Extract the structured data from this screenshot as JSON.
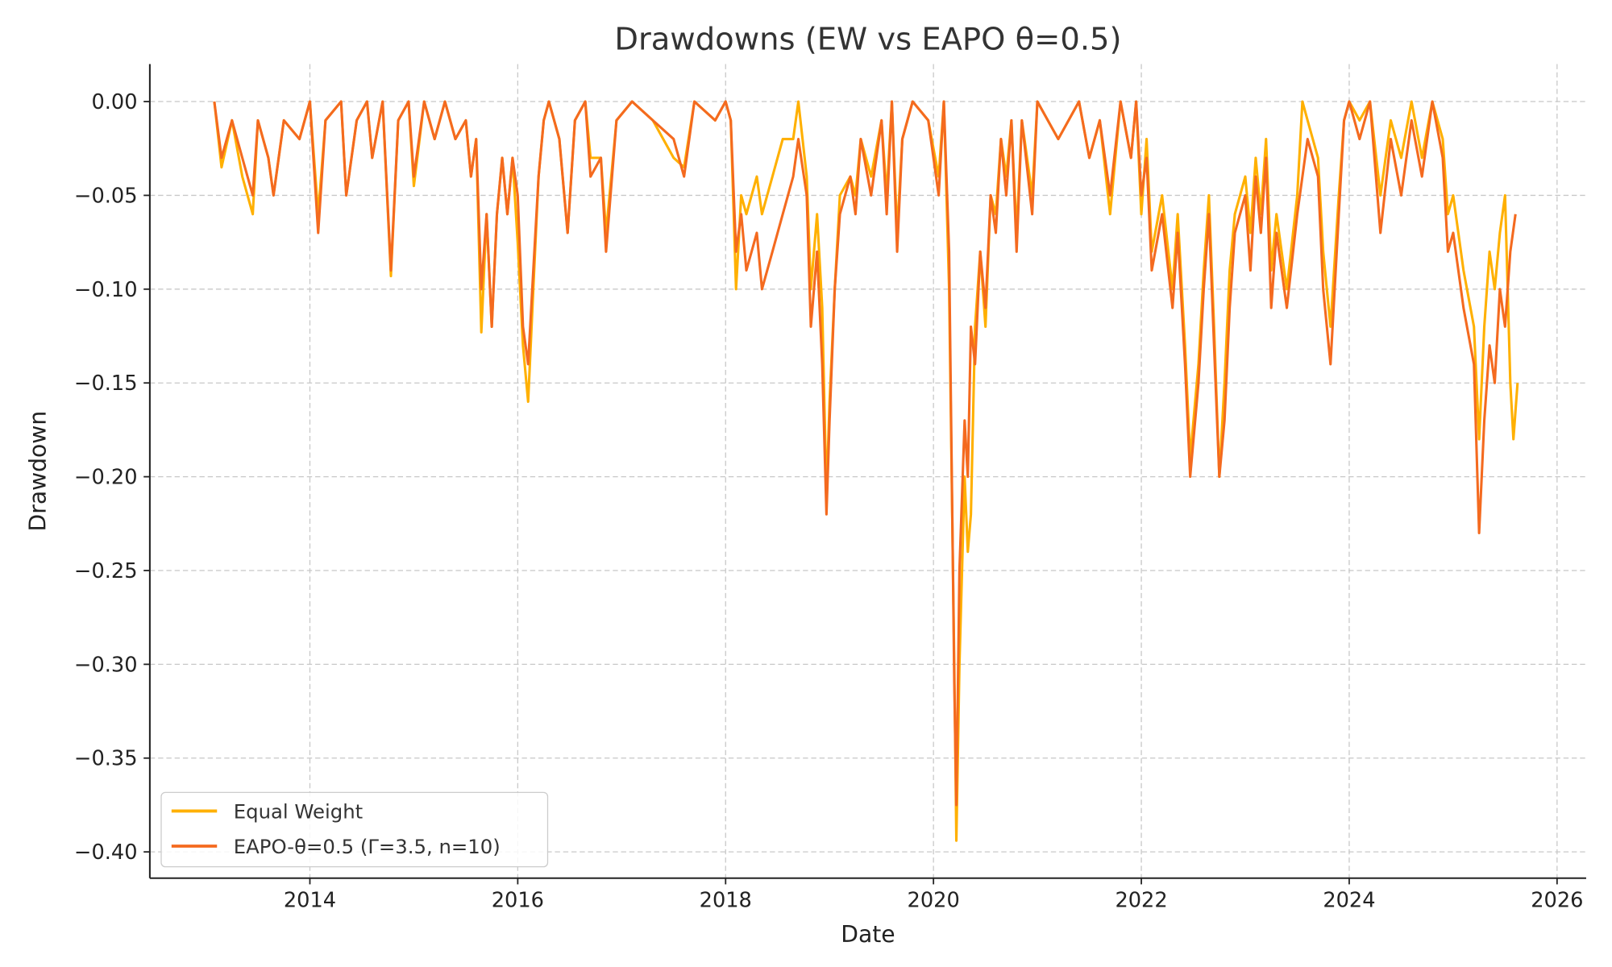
{
  "chart_data": {
    "type": "line",
    "title": "Drawdowns (EW vs EAPO θ=0.5)",
    "xlabel": "Date",
    "ylabel": "Drawdown",
    "xlim": [
      2012.46,
      2026.28
    ],
    "ylim": [
      -0.414,
      0.02
    ],
    "grid": true,
    "legend_position": "lower-left",
    "x_ticks": [
      2014,
      2016,
      2018,
      2020,
      2022,
      2024,
      2026
    ],
    "x_tick_labels": [
      "2014",
      "2016",
      "2018",
      "2020",
      "2022",
      "2024",
      "2026"
    ],
    "y_ticks": [
      0,
      -0.05,
      -0.1,
      -0.15,
      -0.2,
      -0.25,
      -0.3,
      -0.35,
      -0.4
    ],
    "y_tick_labels": [
      "0.00",
      "−0.05",
      "−0.10",
      "−0.15",
      "−0.20",
      "−0.25",
      "−0.30",
      "−0.35",
      "−0.40"
    ],
    "series": [
      {
        "name": "Equal Weight",
        "color": "#FFB000",
        "x": [
          2013.08,
          2013.15,
          2013.25,
          2013.35,
          2013.45,
          2013.5,
          2013.6,
          2013.65,
          2013.75,
          2013.9,
          2014.0,
          2014.08,
          2014.15,
          2014.3,
          2014.35,
          2014.45,
          2014.55,
          2014.6,
          2014.7,
          2014.78,
          2014.85,
          2014.95,
          2015.0,
          2015.1,
          2015.2,
          2015.3,
          2015.4,
          2015.5,
          2015.55,
          2015.6,
          2015.65,
          2015.7,
          2015.75,
          2015.8,
          2015.85,
          2015.9,
          2015.95,
          2016.0,
          2016.05,
          2016.1,
          2016.15,
          2016.2,
          2016.25,
          2016.3,
          2016.4,
          2016.48,
          2016.55,
          2016.65,
          2016.7,
          2016.8,
          2016.85,
          2016.95,
          2017.1,
          2017.3,
          2017.5,
          2017.6,
          2017.7,
          2017.9,
          2018.0,
          2018.05,
          2018.1,
          2018.15,
          2018.2,
          2018.3,
          2018.35,
          2018.45,
          2018.55,
          2018.65,
          2018.7,
          2018.78,
          2018.82,
          2018.88,
          2018.93,
          2018.97,
          2019.0,
          2019.05,
          2019.1,
          2019.2,
          2019.25,
          2019.3,
          2019.4,
          2019.5,
          2019.55,
          2019.6,
          2019.65,
          2019.7,
          2019.8,
          2019.95,
          2020.05,
          2020.1,
          2020.15,
          2020.2,
          2020.22,
          2020.25,
          2020.3,
          2020.33,
          2020.36,
          2020.4,
          2020.45,
          2020.5,
          2020.55,
          2020.6,
          2020.65,
          2020.7,
          2020.75,
          2020.8,
          2020.85,
          2020.95,
          2021.0,
          2021.2,
          2021.4,
          2021.5,
          2021.6,
          2021.7,
          2021.8,
          2021.9,
          2021.95,
          2022.0,
          2022.05,
          2022.1,
          2022.2,
          2022.3,
          2022.35,
          2022.42,
          2022.47,
          2022.55,
          2022.6,
          2022.65,
          2022.7,
          2022.75,
          2022.8,
          2022.85,
          2022.9,
          2023.0,
          2023.05,
          2023.1,
          2023.15,
          2023.2,
          2023.25,
          2023.3,
          2023.35,
          2023.4,
          2023.5,
          2023.55,
          2023.6,
          2023.7,
          2023.75,
          2023.82,
          2023.9,
          2023.95,
          2024.0,
          2024.1,
          2024.2,
          2024.3,
          2024.4,
          2024.5,
          2024.6,
          2024.7,
          2024.8,
          2024.9,
          2024.95,
          2025.0,
          2025.1,
          2025.2,
          2025.25,
          2025.3,
          2025.35,
          2025.4,
          2025.45,
          2025.5,
          2025.55,
          2025.58,
          2025.62
        ],
        "y": [
          0,
          -0.035,
          -0.01,
          -0.04,
          -0.06,
          -0.01,
          -0.03,
          -0.05,
          -0.01,
          -0.02,
          0,
          -0.06,
          -0.01,
          0,
          -0.05,
          -0.01,
          0,
          -0.03,
          0,
          -0.093,
          -0.01,
          0,
          -0.045,
          0,
          -0.02,
          0,
          -0.02,
          -0.01,
          -0.04,
          -0.02,
          -0.123,
          -0.06,
          -0.12,
          -0.06,
          -0.03,
          -0.06,
          -0.03,
          -0.075,
          -0.13,
          -0.16,
          -0.1,
          -0.04,
          -0.01,
          0,
          -0.02,
          -0.07,
          -0.01,
          0,
          -0.03,
          -0.03,
          -0.07,
          -0.01,
          0,
          -0.01,
          -0.03,
          -0.035,
          0,
          -0.01,
          0,
          -0.01,
          -0.1,
          -0.05,
          -0.06,
          -0.04,
          -0.06,
          -0.04,
          -0.02,
          -0.02,
          0,
          -0.04,
          -0.1,
          -0.06,
          -0.11,
          -0.21,
          -0.16,
          -0.1,
          -0.05,
          -0.04,
          -0.05,
          -0.02,
          -0.04,
          -0.01,
          -0.05,
          0,
          -0.07,
          -0.02,
          0,
          -0.01,
          -0.04,
          0,
          -0.1,
          -0.3,
          -0.394,
          -0.3,
          -0.2,
          -0.24,
          -0.22,
          -0.12,
          -0.08,
          -0.12,
          -0.05,
          -0.06,
          -0.02,
          -0.04,
          -0.01,
          -0.07,
          -0.01,
          -0.05,
          0,
          -0.02,
          0,
          -0.03,
          -0.01,
          -0.06,
          0,
          -0.03,
          0,
          -0.06,
          -0.02,
          -0.08,
          -0.05,
          -0.1,
          -0.06,
          -0.13,
          -0.19,
          -0.14,
          -0.09,
          -0.05,
          -0.12,
          -0.2,
          -0.15,
          -0.09,
          -0.06,
          -0.04,
          -0.07,
          -0.03,
          -0.06,
          -0.02,
          -0.09,
          -0.06,
          -0.08,
          -0.1,
          -0.05,
          0,
          -0.01,
          -0.03,
          -0.08,
          -0.12,
          -0.05,
          -0.01,
          0,
          -0.01,
          0,
          -0.05,
          -0.01,
          -0.03,
          0,
          -0.03,
          0,
          -0.02,
          -0.06,
          -0.05,
          -0.09,
          -0.12,
          -0.18,
          -0.12,
          -0.08,
          -0.1,
          -0.07,
          -0.05,
          -0.15,
          -0.18,
          -0.15
        ]
      },
      {
        "name": "EAPO-θ=0.5 (Γ=3.5, n=10)",
        "color": "#F46A1F",
        "x": [
          2013.08,
          2013.15,
          2013.25,
          2013.35,
          2013.45,
          2013.5,
          2013.6,
          2013.65,
          2013.75,
          2013.9,
          2014.0,
          2014.08,
          2014.15,
          2014.3,
          2014.35,
          2014.45,
          2014.55,
          2014.6,
          2014.7,
          2014.78,
          2014.85,
          2014.95,
          2015.0,
          2015.1,
          2015.2,
          2015.3,
          2015.4,
          2015.5,
          2015.55,
          2015.6,
          2015.65,
          2015.7,
          2015.75,
          2015.8,
          2015.85,
          2015.9,
          2015.95,
          2016.0,
          2016.05,
          2016.1,
          2016.15,
          2016.2,
          2016.25,
          2016.3,
          2016.4,
          2016.48,
          2016.55,
          2016.65,
          2016.7,
          2016.8,
          2016.85,
          2016.95,
          2017.1,
          2017.3,
          2017.5,
          2017.6,
          2017.7,
          2017.9,
          2018.0,
          2018.05,
          2018.1,
          2018.15,
          2018.2,
          2018.3,
          2018.35,
          2018.45,
          2018.55,
          2018.65,
          2018.7,
          2018.78,
          2018.82,
          2018.88,
          2018.93,
          2018.97,
          2019.0,
          2019.05,
          2019.1,
          2019.2,
          2019.25,
          2019.3,
          2019.4,
          2019.5,
          2019.55,
          2019.6,
          2019.65,
          2019.7,
          2019.8,
          2019.95,
          2020.05,
          2020.1,
          2020.15,
          2020.2,
          2020.22,
          2020.25,
          2020.3,
          2020.33,
          2020.36,
          2020.4,
          2020.45,
          2020.5,
          2020.55,
          2020.6,
          2020.65,
          2020.7,
          2020.75,
          2020.8,
          2020.85,
          2020.95,
          2021.0,
          2021.2,
          2021.4,
          2021.5,
          2021.6,
          2021.7,
          2021.8,
          2021.9,
          2021.95,
          2022.0,
          2022.05,
          2022.1,
          2022.2,
          2022.3,
          2022.35,
          2022.42,
          2022.47,
          2022.55,
          2022.6,
          2022.65,
          2022.7,
          2022.75,
          2022.8,
          2022.85,
          2022.9,
          2023.0,
          2023.05,
          2023.1,
          2023.15,
          2023.2,
          2023.25,
          2023.3,
          2023.35,
          2023.4,
          2023.5,
          2023.6,
          2023.7,
          2023.75,
          2023.82,
          2023.9,
          2023.95,
          2024.0,
          2024.1,
          2024.2,
          2024.3,
          2024.4,
          2024.5,
          2024.6,
          2024.7,
          2024.8,
          2024.9,
          2024.95,
          2025.0,
          2025.1,
          2025.2,
          2025.25,
          2025.3,
          2025.35,
          2025.4,
          2025.45,
          2025.5,
          2025.55,
          2025.6
        ],
        "y": [
          0,
          -0.03,
          -0.01,
          -0.03,
          -0.05,
          -0.01,
          -0.03,
          -0.05,
          -0.01,
          -0.02,
          0,
          -0.07,
          -0.01,
          0,
          -0.05,
          -0.01,
          0,
          -0.03,
          0,
          -0.09,
          -0.01,
          0,
          -0.04,
          0,
          -0.02,
          0,
          -0.02,
          -0.01,
          -0.04,
          -0.02,
          -0.1,
          -0.06,
          -0.12,
          -0.06,
          -0.03,
          -0.06,
          -0.03,
          -0.05,
          -0.12,
          -0.14,
          -0.09,
          -0.04,
          -0.01,
          0,
          -0.02,
          -0.07,
          -0.01,
          0,
          -0.04,
          -0.03,
          -0.08,
          -0.01,
          0,
          -0.01,
          -0.02,
          -0.04,
          0,
          -0.01,
          0,
          -0.01,
          -0.08,
          -0.06,
          -0.09,
          -0.07,
          -0.1,
          -0.08,
          -0.06,
          -0.04,
          -0.02,
          -0.05,
          -0.12,
          -0.08,
          -0.14,
          -0.22,
          -0.17,
          -0.1,
          -0.06,
          -0.04,
          -0.06,
          -0.02,
          -0.05,
          -0.01,
          -0.06,
          0,
          -0.08,
          -0.02,
          0,
          -0.01,
          -0.05,
          0,
          -0.08,
          -0.31,
          -0.375,
          -0.25,
          -0.17,
          -0.2,
          -0.12,
          -0.14,
          -0.08,
          -0.11,
          -0.05,
          -0.07,
          -0.02,
          -0.05,
          -0.01,
          -0.08,
          -0.01,
          -0.06,
          0,
          -0.02,
          0,
          -0.03,
          -0.01,
          -0.05,
          0,
          -0.03,
          0,
          -0.05,
          -0.03,
          -0.09,
          -0.06,
          -0.11,
          -0.07,
          -0.14,
          -0.2,
          -0.15,
          -0.1,
          -0.06,
          -0.13,
          -0.2,
          -0.17,
          -0.11,
          -0.07,
          -0.05,
          -0.09,
          -0.04,
          -0.07,
          -0.03,
          -0.11,
          -0.07,
          -0.09,
          -0.11,
          -0.06,
          -0.02,
          -0.04,
          -0.1,
          -0.14,
          -0.06,
          -0.01,
          0,
          -0.02,
          0,
          -0.07,
          -0.02,
          -0.05,
          -0.01,
          -0.04,
          0,
          -0.03,
          -0.08,
          -0.07,
          -0.11,
          -0.14,
          -0.23,
          -0.17,
          -0.13,
          -0.15,
          -0.1,
          -0.12,
          -0.08,
          -0.06
        ]
      }
    ]
  }
}
